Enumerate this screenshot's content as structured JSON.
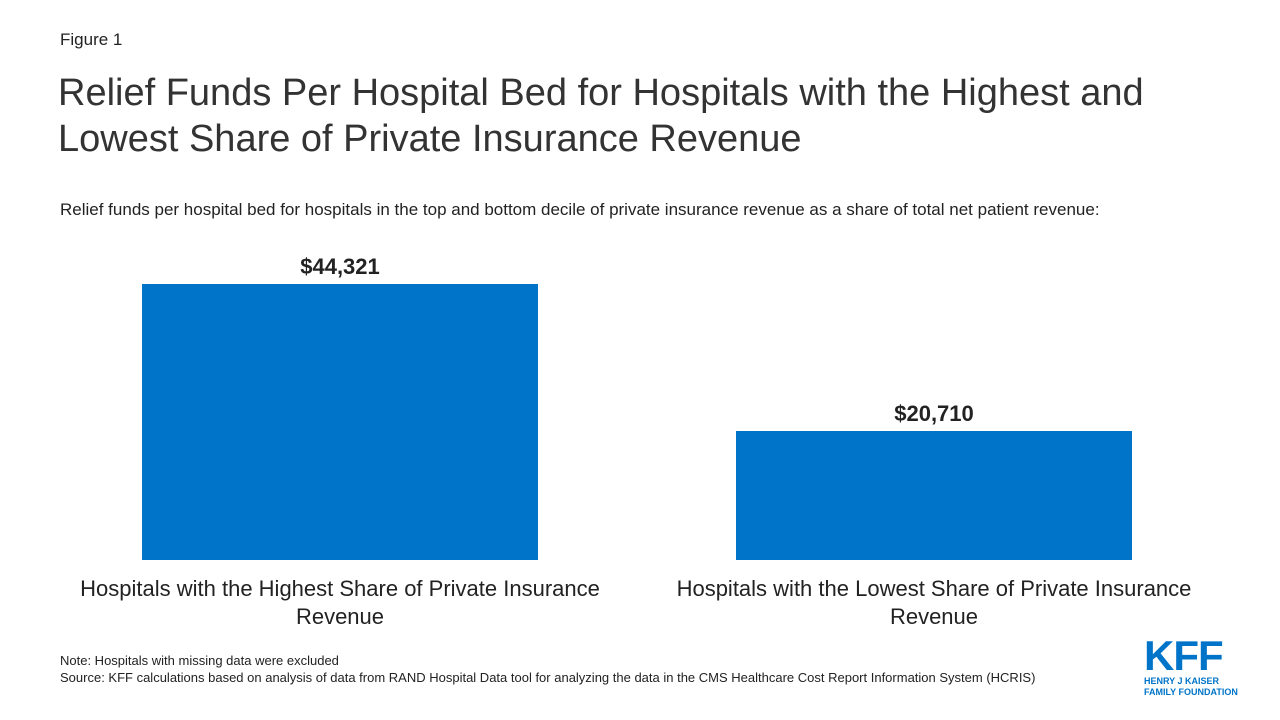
{
  "figure_label": "Figure 1",
  "chart_data": {
    "type": "bar",
    "title": "Relief Funds Per Hospital Bed for Hospitals with the Highest and Lowest Share of Private Insurance Revenue",
    "subtitle": "Relief funds per hospital bed for hospitals in the top and bottom decile of private insurance revenue as a share of total net patient revenue:",
    "categories": [
      "Hospitals with the Highest Share of Private Insurance Revenue",
      "Hospitals with the Lowest Share of Private Insurance Revenue"
    ],
    "values": [
      44321,
      20710
    ],
    "value_labels": [
      "$44,321",
      "$20,710"
    ],
    "color": "#0074c8"
  },
  "notes": {
    "note": "Note: Hospitals with missing data were excluded",
    "source": "Source: KFF calculations based on analysis of data from RAND Hospital Data tool for analyzing the data in the CMS Healthcare Cost Report Information System (HCRIS)"
  },
  "logo": {
    "name": "KFF",
    "line1": "HENRY J KAISER",
    "line2": "FAMILY FOUNDATION"
  }
}
